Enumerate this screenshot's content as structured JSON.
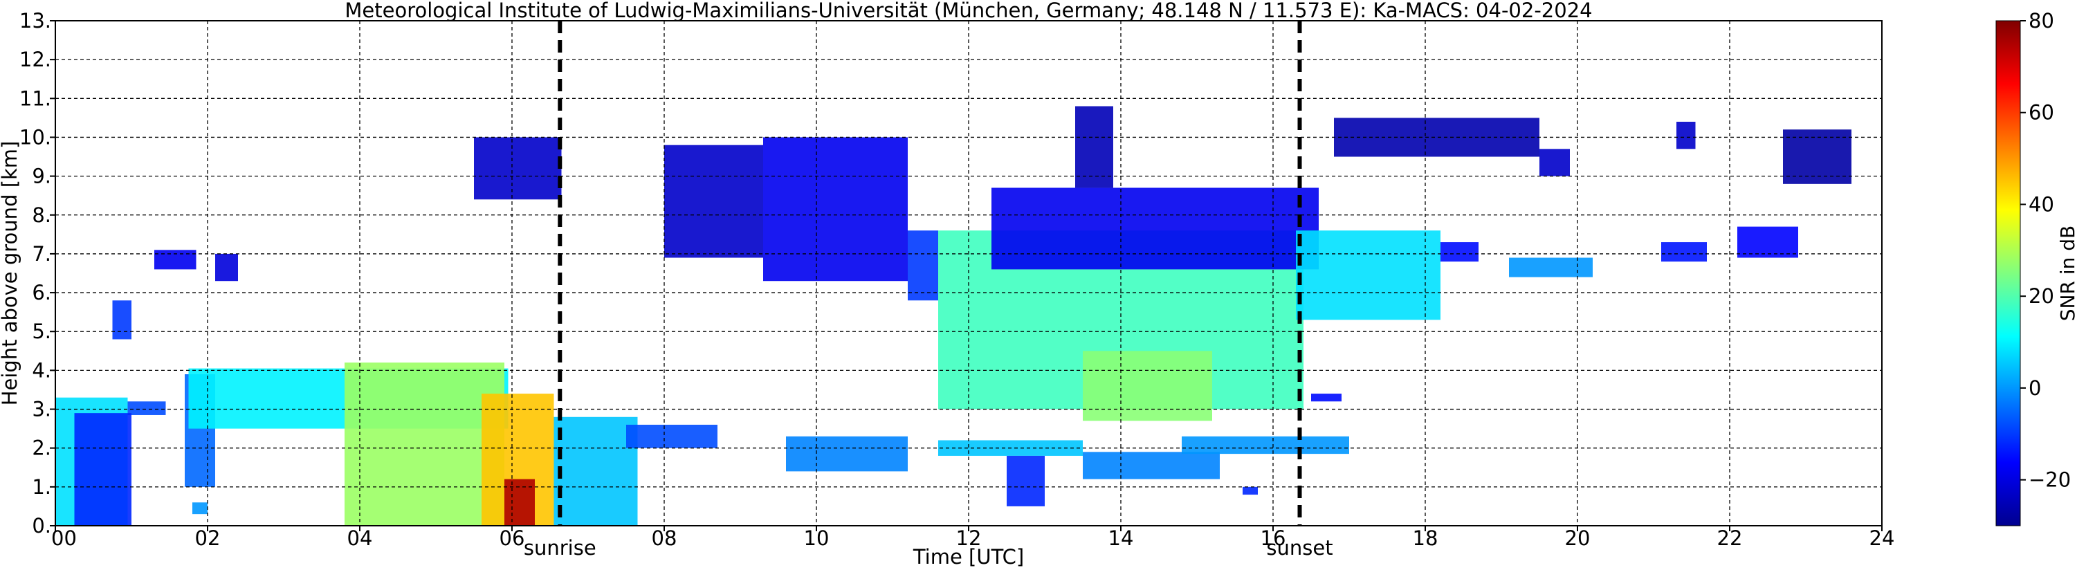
{
  "chart_data": {
    "type": "heatmap",
    "title": "Meteorological Institute of Ludwig-Maximilians-Universität (München, Germany; 48.148 N / 11.573 E):    Ka-MACS: 04-02-2024",
    "xlabel": "Time [UTC]",
    "ylabel": "Height above ground [km]",
    "xlim": [
      0,
      24
    ],
    "ylim": [
      0,
      13
    ],
    "x_ticks": [
      "00",
      "02",
      "04",
      "06",
      "08",
      "10",
      "12",
      "14",
      "16",
      "18",
      "20",
      "22",
      "24"
    ],
    "y_ticks": [
      "0.",
      "1.",
      "2.",
      "3.",
      "4.",
      "5.",
      "6.",
      "7.",
      "8.",
      "9.",
      "10.",
      "11.",
      "12.",
      "13."
    ],
    "grid": true,
    "colorbar": {
      "label": "SNR in dB",
      "range": [
        -30,
        80
      ],
      "ticks": [
        "−20",
        "0",
        "20",
        "40",
        "60",
        "80"
      ],
      "tick_values": [
        -20,
        0,
        20,
        40,
        60,
        80
      ],
      "colormap": "jet"
    },
    "vertical_markers": [
      {
        "time": 6.63,
        "label": "sunrise"
      },
      {
        "time": 16.35,
        "label": "sunset"
      }
    ],
    "echo_regions": [
      {
        "t0": 0.0,
        "t1": 0.95,
        "h0": 0.0,
        "h1": 3.3,
        "snr": 8
      },
      {
        "t0": 0.95,
        "t1": 1.45,
        "h0": 2.85,
        "h1": 3.2,
        "snr": -8
      },
      {
        "t0": 0.25,
        "t1": 1.0,
        "h0": 0.0,
        "h1": 2.9,
        "snr": -12
      },
      {
        "t0": 1.7,
        "t1": 2.1,
        "h0": 1.0,
        "h1": 3.9,
        "snr": -5
      },
      {
        "t0": 1.75,
        "t1": 5.95,
        "h0": 2.5,
        "h1": 4.05,
        "snr": 10
      },
      {
        "t0": 3.8,
        "t1": 5.9,
        "h0": 0.0,
        "h1": 4.2,
        "snr": 28
      },
      {
        "t0": 5.6,
        "t1": 6.55,
        "h0": 0.0,
        "h1": 3.4,
        "snr": 45
      },
      {
        "t0": 5.9,
        "t1": 6.3,
        "h0": 0.0,
        "h1": 1.2,
        "snr": 75
      },
      {
        "t0": 6.55,
        "t1": 7.65,
        "h0": 0.0,
        "h1": 2.8,
        "snr": 5
      },
      {
        "t0": 5.5,
        "t1": 6.65,
        "h0": 8.4,
        "h1": 10.0,
        "snr": -22
      },
      {
        "t0": 1.3,
        "t1": 1.85,
        "h0": 6.6,
        "h1": 7.1,
        "snr": -18
      },
      {
        "t0": 2.1,
        "t1": 2.4,
        "h0": 6.3,
        "h1": 7.0,
        "snr": -20
      },
      {
        "t0": 0.75,
        "t1": 1.0,
        "h0": 4.8,
        "h1": 5.8,
        "snr": -10
      },
      {
        "t0": 1.8,
        "t1": 2.0,
        "h0": 0.3,
        "h1": 0.6,
        "snr": 0
      },
      {
        "t0": 8.0,
        "t1": 9.3,
        "h0": 6.9,
        "h1": 9.8,
        "snr": -22
      },
      {
        "t0": 9.3,
        "t1": 11.2,
        "h0": 6.3,
        "h1": 10.0,
        "snr": -18
      },
      {
        "t0": 11.2,
        "t1": 11.6,
        "h0": 5.8,
        "h1": 7.6,
        "snr": -10
      },
      {
        "t0": 11.6,
        "t1": 16.4,
        "h0": 3.0,
        "h1": 7.6,
        "snr": 18
      },
      {
        "t0": 12.3,
        "t1": 16.6,
        "h0": 6.6,
        "h1": 8.7,
        "snr": -18
      },
      {
        "t0": 13.4,
        "t1": 13.9,
        "h0": 8.7,
        "h1": 10.8,
        "snr": -24
      },
      {
        "t0": 13.5,
        "t1": 15.2,
        "h0": 2.7,
        "h1": 4.5,
        "snr": 26
      },
      {
        "t0": 16.3,
        "t1": 18.2,
        "h0": 5.3,
        "h1": 7.6,
        "snr": 8
      },
      {
        "t0": 18.2,
        "t1": 18.7,
        "h0": 6.8,
        "h1": 7.3,
        "snr": -15
      },
      {
        "t0": 16.8,
        "t1": 19.5,
        "h0": 9.5,
        "h1": 10.5,
        "snr": -25
      },
      {
        "t0": 19.5,
        "t1": 19.9,
        "h0": 9.0,
        "h1": 9.7,
        "snr": -22
      },
      {
        "t0": 19.1,
        "t1": 20.2,
        "h0": 6.4,
        "h1": 6.9,
        "snr": 0
      },
      {
        "t0": 21.1,
        "t1": 21.7,
        "h0": 6.8,
        "h1": 7.3,
        "snr": -14
      },
      {
        "t0": 22.1,
        "t1": 22.9,
        "h0": 6.9,
        "h1": 7.7,
        "snr": -16
      },
      {
        "t0": 22.7,
        "t1": 23.6,
        "h0": 8.8,
        "h1": 10.2,
        "snr": -26
      },
      {
        "t0": 21.3,
        "t1": 21.55,
        "h0": 9.7,
        "h1": 10.4,
        "snr": -22
      },
      {
        "t0": 7.5,
        "t1": 8.7,
        "h0": 2.0,
        "h1": 2.6,
        "snr": -8
      },
      {
        "t0": 9.6,
        "t1": 11.2,
        "h0": 1.4,
        "h1": 2.3,
        "snr": -2
      },
      {
        "t0": 11.6,
        "t1": 13.5,
        "h0": 1.8,
        "h1": 2.2,
        "snr": 5
      },
      {
        "t0": 12.5,
        "t1": 13.0,
        "h0": 0.5,
        "h1": 1.8,
        "snr": -12
      },
      {
        "t0": 13.5,
        "t1": 15.3,
        "h0": 1.2,
        "h1": 1.9,
        "snr": -2
      },
      {
        "t0": 14.8,
        "t1": 17.0,
        "h0": 1.85,
        "h1": 2.3,
        "snr": 0
      },
      {
        "t0": 16.5,
        "t1": 16.9,
        "h0": 3.2,
        "h1": 3.4,
        "snr": -15
      },
      {
        "t0": 15.6,
        "t1": 15.8,
        "h0": 0.8,
        "h1": 1.0,
        "snr": -12
      }
    ]
  }
}
